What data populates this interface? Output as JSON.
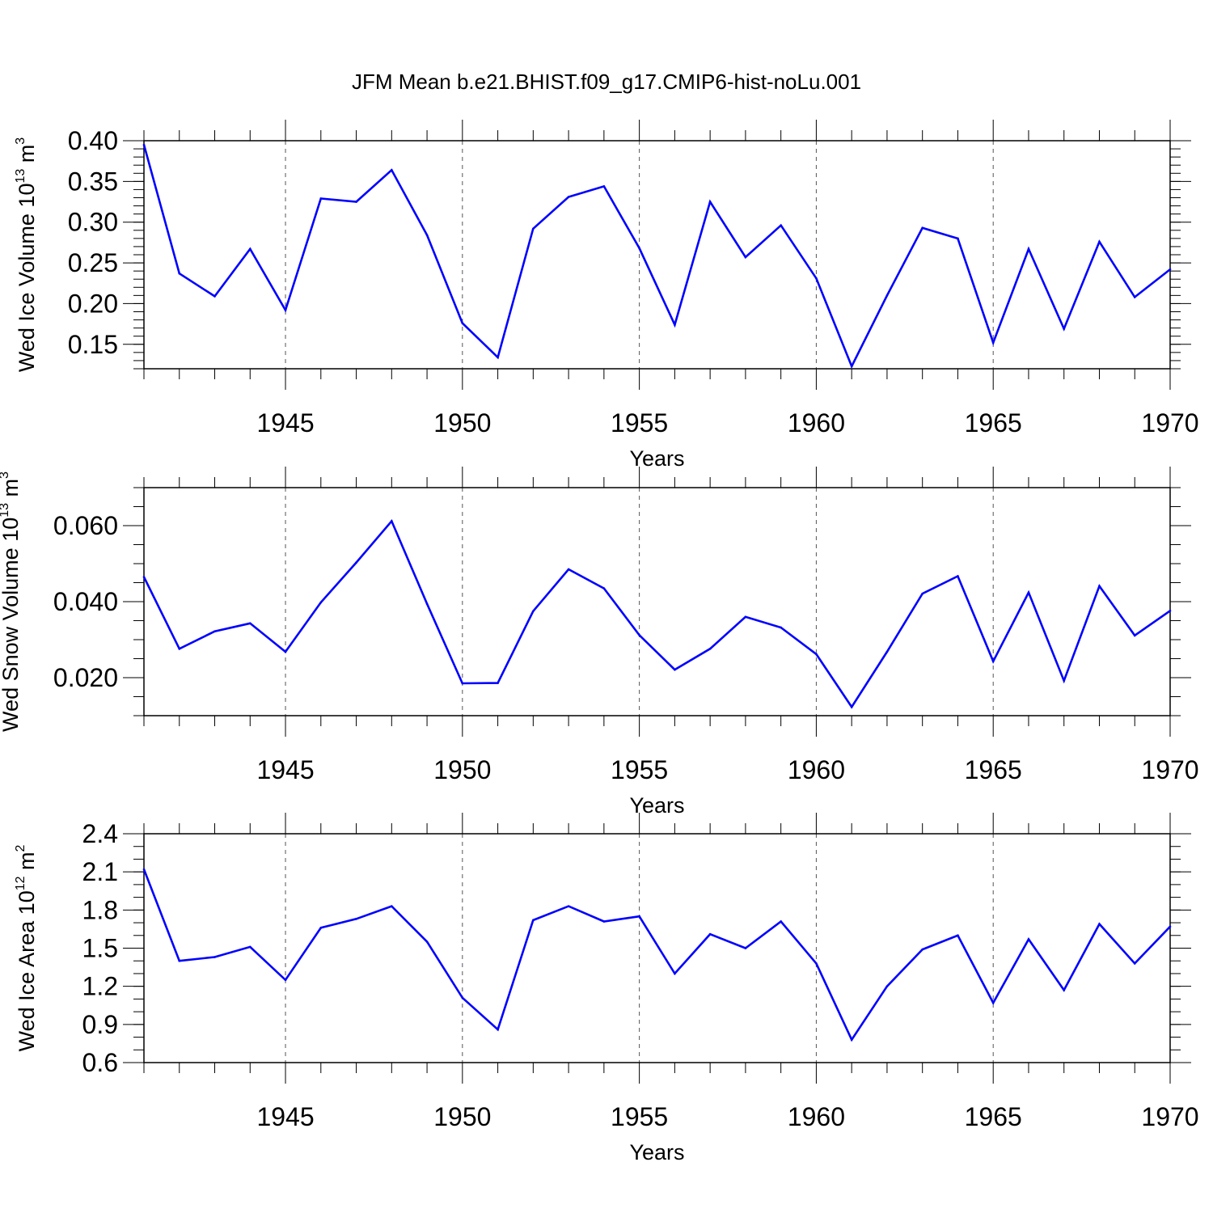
{
  "title": "JFM Mean b.e21.BHIST.f09_g17.CMIP6-hist-noLu.001",
  "colors": {
    "line": "#0000ff",
    "axis": "#000000",
    "grid": "#555555"
  },
  "chart_data": [
    {
      "type": "line",
      "id": "ice_volume",
      "ylabel_prefix": "Wed Ice Volume 10",
      "ylabel_exp": "13",
      "ylabel_unit": " m",
      "ylabel_unit_exp": "3",
      "xlabel": "Years",
      "xlim": [
        1941,
        1970
      ],
      "ylim": [
        0.12,
        0.4
      ],
      "yticks": [
        0.4,
        0.35,
        0.3,
        0.25,
        0.2,
        0.15
      ],
      "ytick_labels": [
        "0.40",
        "0.35",
        "0.30",
        "0.25",
        "0.20",
        "0.15"
      ],
      "yminor_step": 0.01,
      "xticks": [
        1945,
        1950,
        1955,
        1960,
        1965,
        1970
      ],
      "xtick_labels": [
        "1945",
        "1950",
        "1955",
        "1960",
        "1965",
        "1970"
      ],
      "x": [
        1941,
        1942,
        1943,
        1944,
        1945,
        1946,
        1947,
        1948,
        1949,
        1950,
        1951,
        1952,
        1953,
        1954,
        1955,
        1956,
        1957,
        1958,
        1959,
        1960,
        1961,
        1962,
        1963,
        1964,
        1965,
        1966,
        1967,
        1968,
        1969,
        1970
      ],
      "values": [
        0.395,
        0.237,
        0.209,
        0.267,
        0.192,
        0.329,
        0.325,
        0.364,
        0.284,
        0.176,
        0.134,
        0.292,
        0.331,
        0.344,
        0.268,
        0.174,
        0.325,
        0.257,
        0.296,
        0.231,
        0.123,
        0.21,
        0.293,
        0.28,
        0.152,
        0.267,
        0.169,
        0.276,
        0.208,
        0.242
      ]
    },
    {
      "type": "line",
      "id": "snow_volume",
      "ylabel_prefix": "Wed Snow Volume 10",
      "ylabel_exp": "13",
      "ylabel_unit": " m",
      "ylabel_unit_exp": "3",
      "xlabel": "Years",
      "xlim": [
        1941,
        1970
      ],
      "ylim": [
        0.01,
        0.07
      ],
      "yticks": [
        0.06,
        0.04,
        0.02
      ],
      "ytick_labels": [
        "0.060",
        "0.040",
        "0.020"
      ],
      "yminor_step": 0.005,
      "xticks": [
        1945,
        1950,
        1955,
        1960,
        1965,
        1970
      ],
      "xtick_labels": [
        "1945",
        "1950",
        "1955",
        "1960",
        "1965",
        "1970"
      ],
      "x": [
        1941,
        1942,
        1943,
        1944,
        1945,
        1946,
        1947,
        1948,
        1949,
        1950,
        1951,
        1952,
        1953,
        1954,
        1955,
        1956,
        1957,
        1958,
        1959,
        1960,
        1961,
        1962,
        1963,
        1964,
        1965,
        1966,
        1967,
        1968,
        1969,
        1970
      ],
      "values": [
        0.0465,
        0.0276,
        0.0322,
        0.0343,
        0.0268,
        0.0398,
        0.0503,
        0.0612,
        0.0394,
        0.0185,
        0.0186,
        0.0375,
        0.0485,
        0.0435,
        0.0312,
        0.0221,
        0.0276,
        0.036,
        0.0332,
        0.0262,
        0.0123,
        0.0268,
        0.0421,
        0.0467,
        0.0243,
        0.0424,
        0.0192,
        0.0441,
        0.0311,
        0.0376
      ]
    },
    {
      "type": "line",
      "id": "ice_area",
      "ylabel_prefix": "Wed Ice Area 10",
      "ylabel_exp": "12",
      "ylabel_unit": " m",
      "ylabel_unit_exp": "2",
      "xlabel": "Years",
      "xlim": [
        1941,
        1970
      ],
      "ylim": [
        0.6,
        2.4
      ],
      "yticks": [
        2.4,
        2.1,
        1.8,
        1.5,
        1.2,
        0.9,
        0.6
      ],
      "ytick_labels": [
        "2.4",
        "2.1",
        "1.8",
        "1.5",
        "1.2",
        "0.9",
        "0.6"
      ],
      "yminor_step": 0.1,
      "xticks": [
        1945,
        1950,
        1955,
        1960,
        1965,
        1970
      ],
      "xtick_labels": [
        "1945",
        "1950",
        "1955",
        "1960",
        "1965",
        "1970"
      ],
      "x": [
        1941,
        1942,
        1943,
        1944,
        1945,
        1946,
        1947,
        1948,
        1949,
        1950,
        1951,
        1952,
        1953,
        1954,
        1955,
        1956,
        1957,
        1958,
        1959,
        1960,
        1961,
        1962,
        1963,
        1964,
        1965,
        1966,
        1967,
        1968,
        1969,
        1970
      ],
      "values": [
        2.12,
        1.4,
        1.43,
        1.51,
        1.25,
        1.66,
        1.73,
        1.83,
        1.55,
        1.11,
        0.86,
        1.72,
        1.83,
        1.71,
        1.75,
        1.3,
        1.61,
        1.5,
        1.71,
        1.38,
        0.78,
        1.2,
        1.49,
        1.6,
        1.07,
        1.57,
        1.17,
        1.69,
        1.38,
        1.67
      ]
    }
  ]
}
